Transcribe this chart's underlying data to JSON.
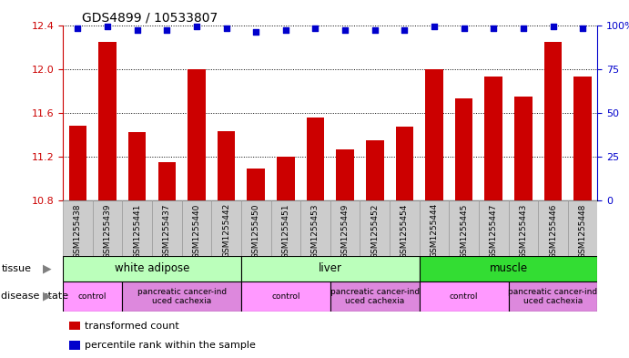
{
  "title": "GDS4899 / 10533807",
  "samples": [
    "GSM1255438",
    "GSM1255439",
    "GSM1255441",
    "GSM1255437",
    "GSM1255440",
    "GSM1255442",
    "GSM1255450",
    "GSM1255451",
    "GSM1255453",
    "GSM1255449",
    "GSM1255452",
    "GSM1255454",
    "GSM1255444",
    "GSM1255445",
    "GSM1255447",
    "GSM1255443",
    "GSM1255446",
    "GSM1255448"
  ],
  "bar_values": [
    11.48,
    12.25,
    11.42,
    11.15,
    12.0,
    11.43,
    11.09,
    11.2,
    11.56,
    11.27,
    11.35,
    11.47,
    12.0,
    11.73,
    11.93,
    11.75,
    12.25,
    11.93
  ],
  "percentile_values": [
    98,
    99,
    97,
    97,
    99,
    98,
    96,
    97,
    98,
    97,
    97,
    97,
    99,
    98,
    98,
    98,
    99,
    98
  ],
  "bar_color": "#cc0000",
  "percentile_color": "#0000cc",
  "ylim_left": [
    10.8,
    12.4
  ],
  "ylim_right": [
    0,
    100
  ],
  "yticks_left": [
    10.8,
    11.2,
    11.6,
    12.0,
    12.4
  ],
  "yticks_right": [
    0,
    25,
    50,
    75,
    100
  ],
  "tissue_groups": [
    {
      "label": "white adipose",
      "start": 0,
      "end": 6,
      "color": "#bbffbb"
    },
    {
      "label": "liver",
      "start": 6,
      "end": 12,
      "color": "#bbffbb"
    },
    {
      "label": "muscle",
      "start": 12,
      "end": 18,
      "color": "#33dd33"
    }
  ],
  "disease_groups": [
    {
      "label": "control",
      "start": 0,
      "end": 2,
      "color": "#ff99ff"
    },
    {
      "label": "pancreatic cancer-ind\nuced cachexia",
      "start": 2,
      "end": 6,
      "color": "#dd88dd"
    },
    {
      "label": "control",
      "start": 6,
      "end": 9,
      "color": "#ff99ff"
    },
    {
      "label": "pancreatic cancer-ind\nuced cachexia",
      "start": 9,
      "end": 12,
      "color": "#dd88dd"
    },
    {
      "label": "control",
      "start": 12,
      "end": 15,
      "color": "#ff99ff"
    },
    {
      "label": "pancreatic cancer-ind\nuced cachexia",
      "start": 15,
      "end": 18,
      "color": "#dd88dd"
    }
  ],
  "legend_items": [
    {
      "label": "transformed count",
      "color": "#cc0000"
    },
    {
      "label": "percentile rank within the sample",
      "color": "#0000cc"
    }
  ],
  "ticklabel_bg": "#cccccc",
  "ticklabel_border": "#999999"
}
